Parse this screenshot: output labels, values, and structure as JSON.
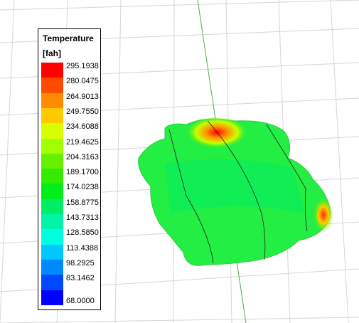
{
  "legend": {
    "title": "Temperature",
    "unit": "[fah]",
    "labels": [
      "295.1938",
      "280.0475",
      "264.9013",
      "249.7550",
      "234.6088",
      "219.4625",
      "204.3163",
      "189.1700",
      "174.0238",
      "158.8775",
      "143.7313",
      "128.5850",
      "113.4388",
      "98.2925",
      "83.1462",
      "68.0000"
    ],
    "colors": [
      "#ff0000",
      "#ff4a00",
      "#ff8c00",
      "#ffc800",
      "#d8ff00",
      "#a2ff00",
      "#66f000",
      "#33ec00",
      "#00ee1a",
      "#00ee66",
      "#00f4a8",
      "#00ffe0",
      "#00c8ff",
      "#0088ff",
      "#0048ff",
      "#0000ff"
    ]
  }
}
